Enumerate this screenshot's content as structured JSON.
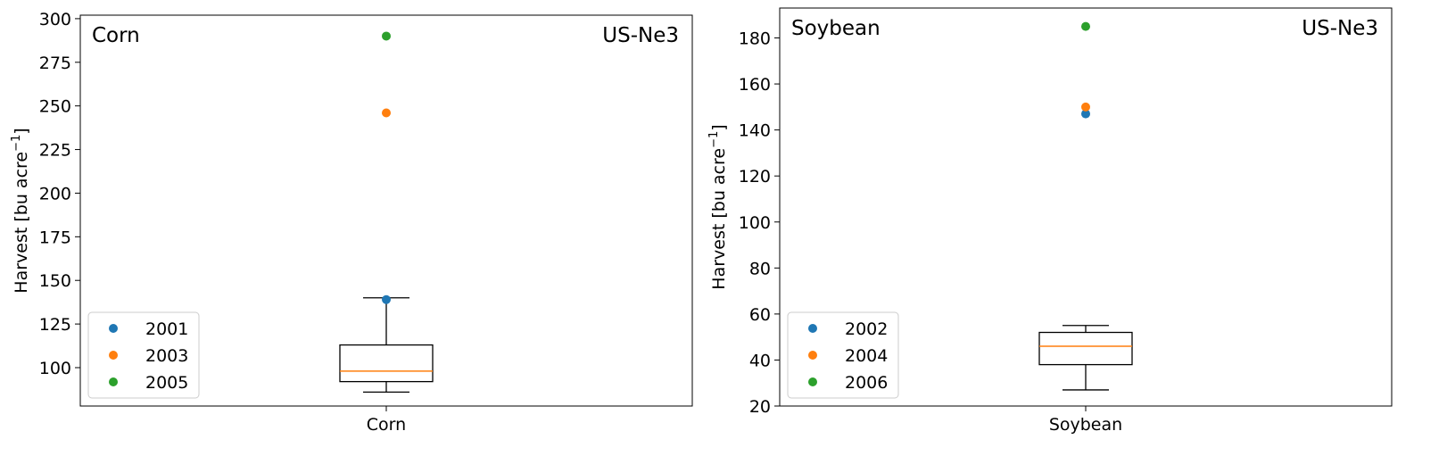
{
  "chart_data": [
    {
      "type": "box",
      "category": "Corn",
      "ylabel": "Harvest [bu acre",
      "ylabel_sup": "−1",
      "ylabel_close": "]",
      "annotation_left": "Corn",
      "annotation_right": "US-Ne3",
      "ylim": [
        78,
        302
      ],
      "yticks": [
        100,
        125,
        150,
        175,
        200,
        225,
        250,
        275,
        300
      ],
      "box": {
        "whisker_low": 86,
        "q1": 92,
        "median": 98,
        "q3": 113,
        "whisker_high": 140
      },
      "legend_position": "lower-left",
      "points": [
        {
          "name": "2001",
          "value": 139,
          "color": "#1f77b4"
        },
        {
          "name": "2003",
          "value": 246,
          "color": "#ff7f0e"
        },
        {
          "name": "2005",
          "value": 290,
          "color": "#2ca02c"
        }
      ],
      "box_color": "#000000",
      "median_color": "#ff7f0e"
    },
    {
      "type": "box",
      "category": "Soybean",
      "ylabel": "Harvest [bu acre",
      "ylabel_sup": "−1",
      "ylabel_close": "]",
      "annotation_left": "Soybean",
      "annotation_right": "US-Ne3",
      "ylim": [
        20,
        193
      ],
      "yticks": [
        20,
        40,
        60,
        80,
        100,
        120,
        140,
        160,
        180
      ],
      "box": {
        "whisker_low": 27,
        "q1": 38,
        "median": 46,
        "q3": 52,
        "whisker_high": 55
      },
      "legend_position": "lower-left",
      "points": [
        {
          "name": "2002",
          "value": 147,
          "color": "#1f77b4"
        },
        {
          "name": "2004",
          "value": 150,
          "color": "#ff7f0e"
        },
        {
          "name": "2006",
          "value": 185,
          "color": "#2ca02c"
        }
      ],
      "box_color": "#000000",
      "median_color": "#ff7f0e"
    }
  ]
}
